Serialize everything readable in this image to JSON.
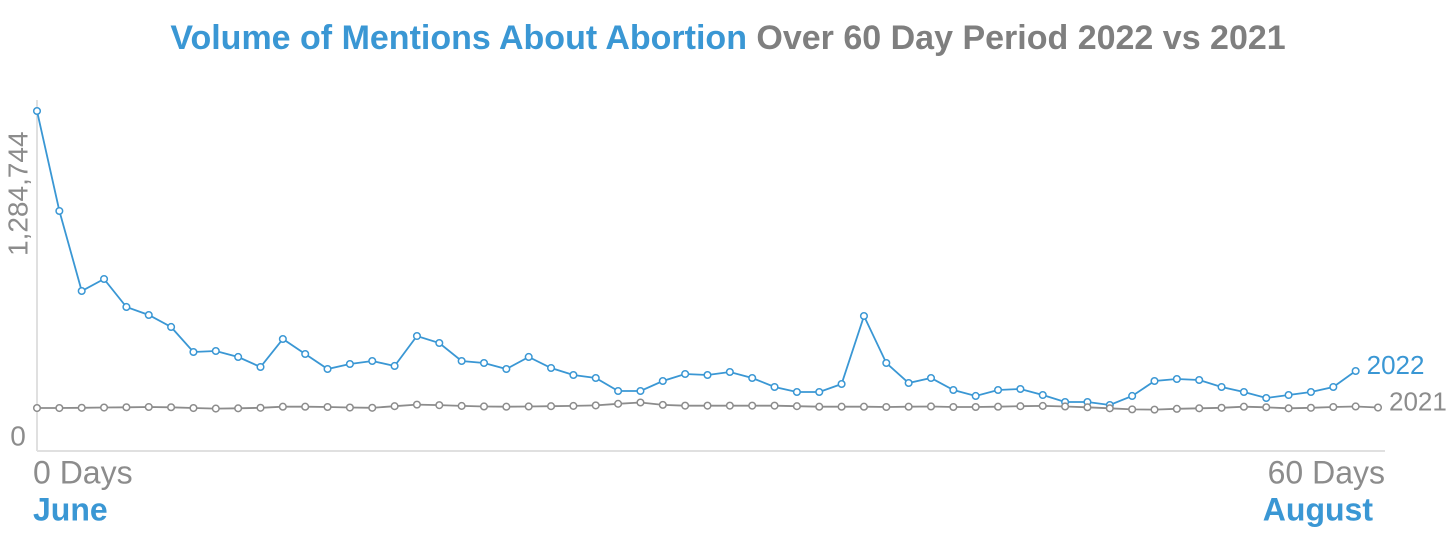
{
  "chart_data": {
    "type": "line",
    "title_parts": [
      {
        "text": "Volume of Mentions About Abortion",
        "color": "#3a97d4"
      },
      {
        "text": "Over 60 Day Period 2022 vs 2021",
        "color": "#7f7f7f"
      }
    ],
    "x": [
      0,
      1,
      2,
      3,
      4,
      5,
      6,
      7,
      8,
      9,
      10,
      11,
      12,
      13,
      14,
      15,
      16,
      17,
      18,
      19,
      20,
      21,
      22,
      23,
      24,
      25,
      26,
      27,
      28,
      29,
      30,
      31,
      32,
      33,
      34,
      35,
      36,
      37,
      38,
      39,
      40,
      41,
      42,
      43,
      44,
      45,
      46,
      47,
      48,
      49,
      50,
      51,
      52,
      53,
      54,
      55,
      56,
      57,
      58,
      59,
      60
    ],
    "xlim": [
      0,
      60
    ],
    "xticks": [
      {
        "value": 0,
        "label": "0 Days"
      },
      {
        "value": 60,
        "label": "60 Days"
      }
    ],
    "x_annotations": [
      {
        "value": 0,
        "label": "June"
      },
      {
        "value": 60,
        "label": "August"
      }
    ],
    "ylim": [
      0,
      1284744
    ],
    "yticks": [
      0,
      {
        "value": 1284744,
        "label": "1,284,744"
      }
    ],
    "series": [
      {
        "name": "2022",
        "color": "#3a97d4",
        "values": [
          1284744,
          905800,
          602600,
          648100,
          542000,
          511600,
          466200,
          371400,
          375200,
          352500,
          314600,
          420700,
          363800,
          307000,
          325900,
          337300,
          318400,
          432000,
          405500,
          337300,
          329700,
          307000,
          352500,
          310800,
          284200,
          272900,
          223600,
          223600,
          261500,
          288000,
          284200,
          295600,
          272900,
          238800,
          219800,
          219800,
          250100,
          507800,
          329700,
          253900,
          272900,
          227400,
          204700,
          227400,
          231200,
          208400,
          181900,
          181900,
          170500,
          204700,
          261500,
          269100,
          265300,
          238800,
          219800,
          197100,
          208400,
          219800,
          238800,
          299400,
          null
        ]
      },
      {
        "name": "2021",
        "color": "#8c8c8c",
        "values": [
          159000,
          159000,
          160000,
          161000,
          162000,
          163000,
          162000,
          159000,
          157000,
          158000,
          160000,
          164000,
          164000,
          163000,
          161000,
          160000,
          166000,
          172000,
          170000,
          167000,
          165000,
          164000,
          165000,
          166000,
          167000,
          169000,
          175000,
          180000,
          171000,
          168000,
          168000,
          168000,
          168000,
          168000,
          166000,
          164000,
          164000,
          164000,
          163000,
          164000,
          165000,
          163000,
          163000,
          164000,
          166000,
          167000,
          165000,
          162000,
          158000,
          154000,
          153000,
          156000,
          158000,
          160000,
          164000,
          162000,
          158000,
          160000,
          163000,
          165000,
          161000
        ]
      }
    ]
  }
}
